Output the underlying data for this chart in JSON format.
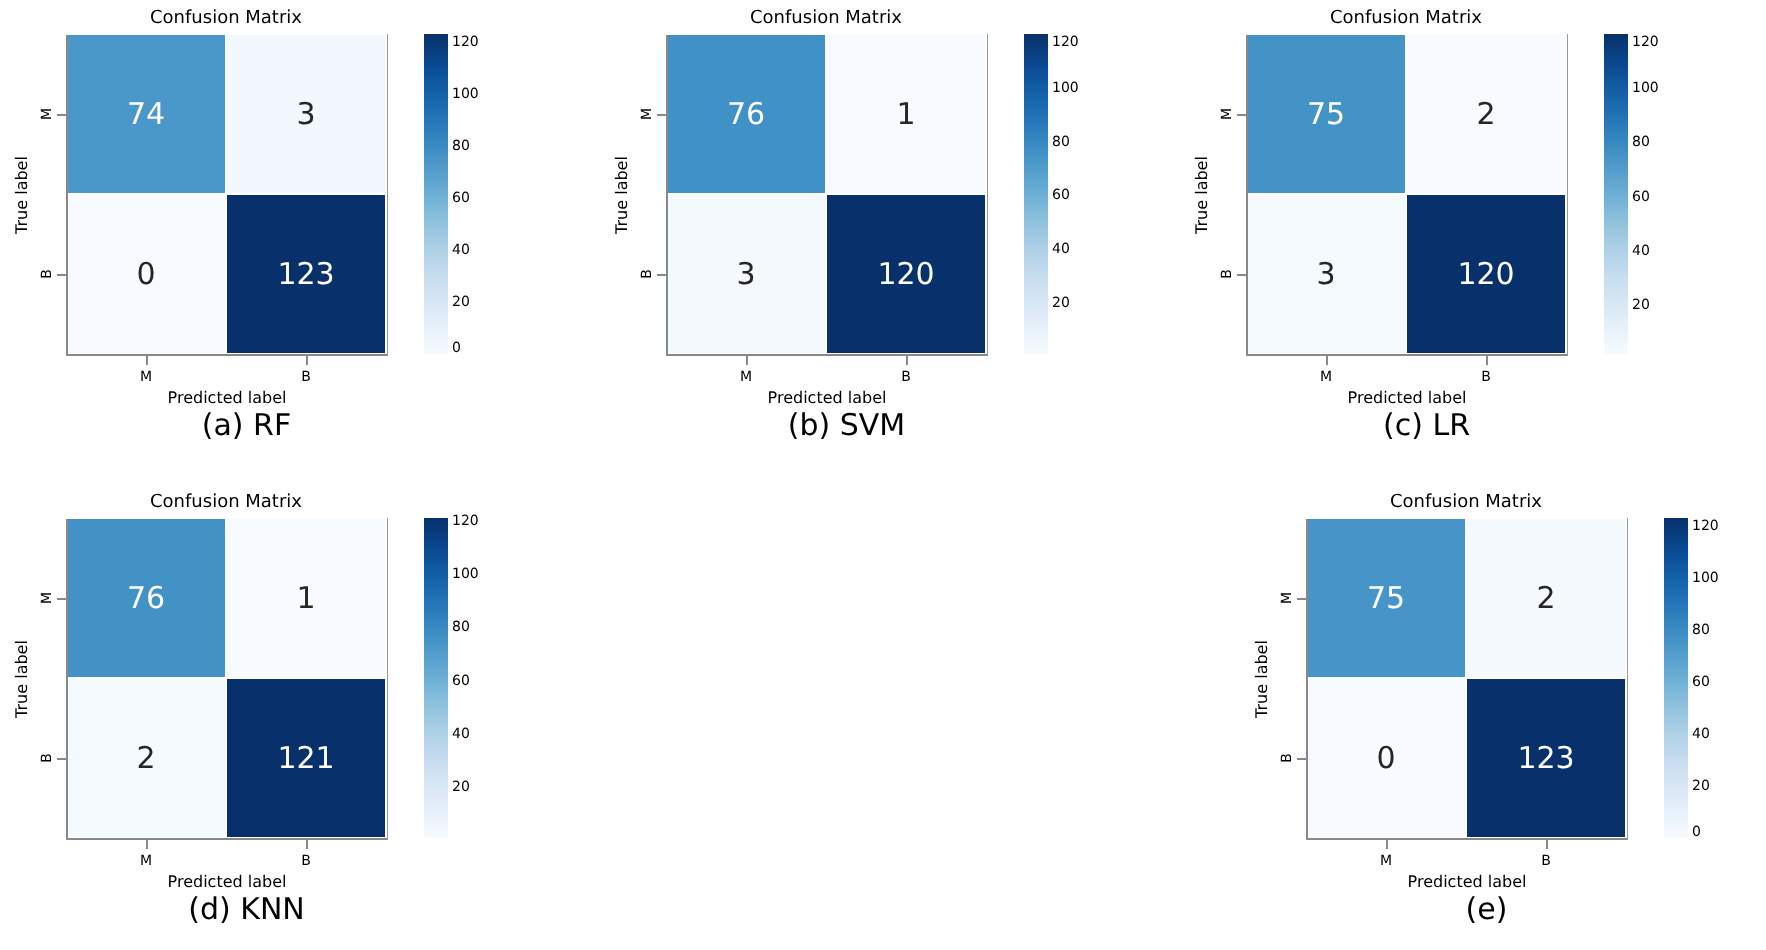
{
  "chart_data": [
    {
      "type": "heatmap",
      "title": "Confusion Matrix",
      "xlabel": "Predicted label",
      "ylabel": "True label",
      "categories": [
        "M",
        "B"
      ],
      "y_categories": [
        "M",
        "B"
      ],
      "cells": [
        [
          74,
          3
        ],
        [
          0,
          123
        ]
      ],
      "clim": [
        0,
        123
      ],
      "cticks": [
        0,
        20,
        40,
        60,
        80,
        100,
        120
      ],
      "data_labels": true,
      "annotations": [
        "(a) RF"
      ]
    },
    {
      "type": "heatmap",
      "title": "Confusion Matrix",
      "xlabel": "Predicted label",
      "ylabel": "True label",
      "categories": [
        "M",
        "B"
      ],
      "y_categories": [
        "M",
        "B"
      ],
      "cells": [
        [
          76,
          1
        ],
        [
          3,
          120
        ]
      ],
      "clim": [
        1,
        120
      ],
      "cticks": [
        20,
        40,
        60,
        80,
        100,
        120
      ],
      "data_labels": true,
      "annotations": [
        "(b) SVM"
      ]
    },
    {
      "type": "heatmap",
      "title": "Confusion Matrix",
      "xlabel": "Predicted label",
      "ylabel": "True label",
      "categories": [
        "M",
        "B"
      ],
      "y_categories": [
        "M",
        "B"
      ],
      "cells": [
        [
          75,
          2
        ],
        [
          3,
          120
        ]
      ],
      "clim": [
        2,
        120
      ],
      "cticks": [
        20,
        40,
        60,
        80,
        100,
        120
      ],
      "data_labels": true,
      "annotations": [
        "(c) LR"
      ]
    },
    {
      "type": "heatmap",
      "title": "Confusion Matrix",
      "xlabel": "Predicted label",
      "ylabel": "True label",
      "categories": [
        "M",
        "B"
      ],
      "y_categories": [
        "M",
        "B"
      ],
      "cells": [
        [
          76,
          1
        ],
        [
          2,
          121
        ]
      ],
      "clim": [
        1,
        121
      ],
      "cticks": [
        20,
        40,
        60,
        80,
        100,
        120
      ],
      "data_labels": true,
      "annotations": [
        "(d) KNN"
      ]
    },
    {
      "type": "heatmap",
      "title": "Confusion Matrix",
      "xlabel": "Predicted label",
      "ylabel": "True label",
      "categories": [
        "M",
        "B"
      ],
      "y_categories": [
        "M",
        "B"
      ],
      "cells": [
        [
          75,
          2
        ],
        [
          0,
          123
        ]
      ],
      "clim": [
        0,
        123
      ],
      "cticks": [
        0,
        20,
        40,
        60,
        80,
        100,
        120
      ],
      "data_labels": true,
      "annotations": [
        "(e)"
      ]
    }
  ]
}
